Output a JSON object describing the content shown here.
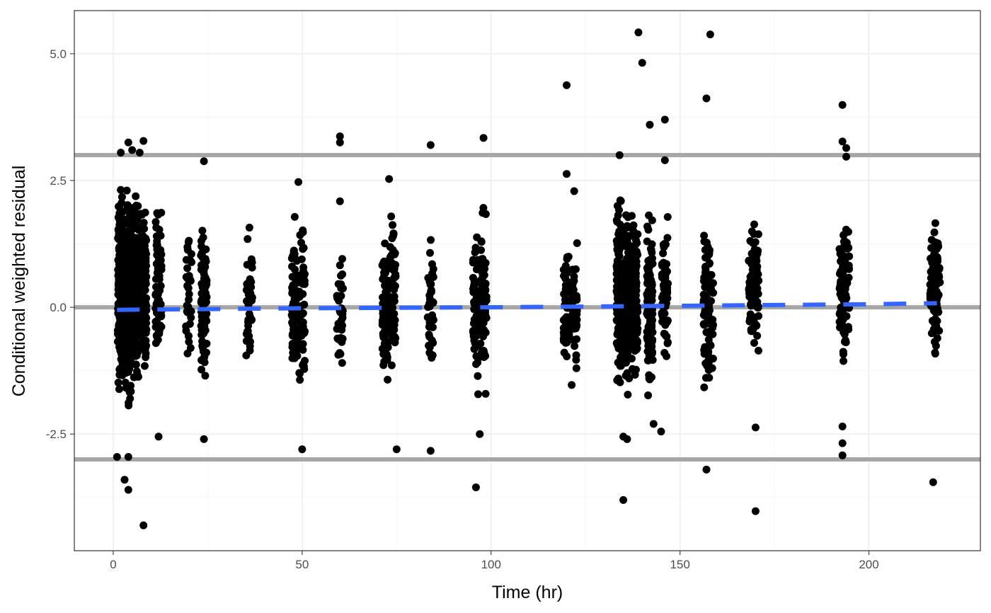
{
  "chart_data": {
    "type": "scatter",
    "xlabel": "Time (hr)",
    "ylabel": "Conditional weighted residual",
    "xlim": [
      -10.3,
      229.5
    ],
    "ylim": [
      -4.8,
      5.85
    ],
    "x_ticks": [
      0,
      50,
      100,
      150,
      200
    ],
    "y_ticks": [
      -2.5,
      0.0,
      2.5,
      5.0
    ],
    "x_tick_labels": [
      "0",
      "50",
      "100",
      "150",
      "200"
    ],
    "y_tick_labels": [
      "-2.5",
      "0.0",
      "2.5",
      "5.0"
    ],
    "grid": true,
    "reference_lines": [
      {
        "y": 3,
        "color": "#a6a6a6"
      },
      {
        "y": 0,
        "color": "#a6a6a6"
      },
      {
        "y": -3,
        "color": "#a6a6a6"
      }
    ],
    "trend_line": {
      "style": "dashed",
      "color": "#3366ff",
      "x": [
        1,
        50,
        100,
        150,
        200,
        218
      ],
      "y": [
        -0.05,
        -0.02,
        0.0,
        0.03,
        0.06,
        0.08
      ]
    },
    "point_color": "#000000",
    "point_clusters": [
      {
        "x": 2,
        "n": 190,
        "ymin": -2.1,
        "ymax": 2.8
      },
      {
        "x": 4,
        "n": 200,
        "ymin": -2.3,
        "ymax": 2.9
      },
      {
        "x": 6,
        "n": 160,
        "ymin": -2.0,
        "ymax": 2.5
      },
      {
        "x": 8,
        "n": 120,
        "ymin": -2.0,
        "ymax": 2.4
      },
      {
        "x": 12,
        "n": 70,
        "ymin": -1.9,
        "ymax": 2.6
      },
      {
        "x": 20,
        "n": 35,
        "ymin": -1.7,
        "ymax": 2.2
      },
      {
        "x": 24,
        "n": 80,
        "ymin": -2.0,
        "ymax": 2.1
      },
      {
        "x": 36,
        "n": 40,
        "ymin": -1.7,
        "ymax": 1.8
      },
      {
        "x": 48,
        "n": 70,
        "ymin": -2.0,
        "ymax": 2.1
      },
      {
        "x": 50,
        "n": 60,
        "ymin": -2.0,
        "ymax": 2.0
      },
      {
        "x": 60,
        "n": 35,
        "ymin": -1.7,
        "ymax": 1.6
      },
      {
        "x": 72,
        "n": 80,
        "ymin": -2.0,
        "ymax": 2.0
      },
      {
        "x": 74,
        "n": 60,
        "ymin": -1.9,
        "ymax": 2.4
      },
      {
        "x": 84,
        "n": 40,
        "ymin": -1.8,
        "ymax": 1.8
      },
      {
        "x": 96,
        "n": 70,
        "ymin": -2.2,
        "ymax": 2.2
      },
      {
        "x": 98,
        "n": 60,
        "ymin": -2.0,
        "ymax": 2.4
      },
      {
        "x": 120,
        "n": 50,
        "ymin": -1.6,
        "ymax": 1.8
      },
      {
        "x": 122,
        "n": 45,
        "ymin": -2.0,
        "ymax": 1.6
      },
      {
        "x": 134,
        "n": 140,
        "ymin": -2.1,
        "ymax": 2.6
      },
      {
        "x": 136,
        "n": 160,
        "ymin": -2.0,
        "ymax": 2.4
      },
      {
        "x": 138,
        "n": 110,
        "ymin": -1.8,
        "ymax": 2.2
      },
      {
        "x": 142,
        "n": 110,
        "ymin": -2.2,
        "ymax": 2.1
      },
      {
        "x": 146,
        "n": 80,
        "ymin": -1.7,
        "ymax": 2.2
      },
      {
        "x": 157,
        "n": 60,
        "ymin": -2.0,
        "ymax": 2.1
      },
      {
        "x": 158,
        "n": 40,
        "ymin": -1.9,
        "ymax": 1.6
      },
      {
        "x": 169,
        "n": 55,
        "ymin": -1.5,
        "ymax": 2.2
      },
      {
        "x": 170,
        "n": 55,
        "ymin": -1.4,
        "ymax": 2.3
      },
      {
        "x": 193,
        "n": 55,
        "ymin": -1.3,
        "ymax": 2.1
      },
      {
        "x": 194,
        "n": 45,
        "ymin": -1.6,
        "ymax": 2.4
      },
      {
        "x": 217,
        "n": 55,
        "ymin": -1.6,
        "ymax": 2.0
      },
      {
        "x": 218,
        "n": 45,
        "ymin": -1.4,
        "ymax": 2.1
      }
    ],
    "outlier_points": [
      [
        1,
        -2.95
      ],
      [
        3,
        -3.4
      ],
      [
        4,
        -3.6
      ],
      [
        4,
        -2.95
      ],
      [
        8,
        -4.3
      ],
      [
        4,
        3.25
      ],
      [
        8,
        3.28
      ],
      [
        5,
        3.1
      ],
      [
        7,
        3.05
      ],
      [
        2,
        3.05
      ],
      [
        12,
        -2.55
      ],
      [
        24,
        -2.6
      ],
      [
        24,
        2.88
      ],
      [
        49,
        2.47
      ],
      [
        50,
        -2.8
      ],
      [
        60,
        3.37
      ],
      [
        60,
        3.25
      ],
      [
        60,
        2.09
      ],
      [
        73,
        2.53
      ],
      [
        75,
        -2.8
      ],
      [
        84,
        3.2
      ],
      [
        84,
        -2.83
      ],
      [
        96,
        -3.55
      ],
      [
        98,
        3.34
      ],
      [
        97,
        -2.5
      ],
      [
        120,
        4.38
      ],
      [
        120,
        2.63
      ],
      [
        122,
        2.29
      ],
      [
        134,
        3.0
      ],
      [
        135,
        -3.8
      ],
      [
        135,
        -2.55
      ],
      [
        136,
        -2.6
      ],
      [
        139,
        5.42
      ],
      [
        140,
        4.82
      ],
      [
        142,
        3.6
      ],
      [
        146,
        3.7
      ],
      [
        146,
        2.9
      ],
      [
        145,
        -2.45
      ],
      [
        143,
        -2.3
      ],
      [
        157,
        -3.2
      ],
      [
        157,
        4.12
      ],
      [
        158,
        5.38
      ],
      [
        170,
        -4.02
      ],
      [
        170,
        -2.37
      ],
      [
        193,
        3.99
      ],
      [
        193,
        3.27
      ],
      [
        194,
        3.14
      ],
      [
        194,
        2.97
      ],
      [
        193,
        -2.35
      ],
      [
        193,
        -2.68
      ],
      [
        193,
        -2.92
      ],
      [
        217,
        -3.45
      ]
    ]
  }
}
